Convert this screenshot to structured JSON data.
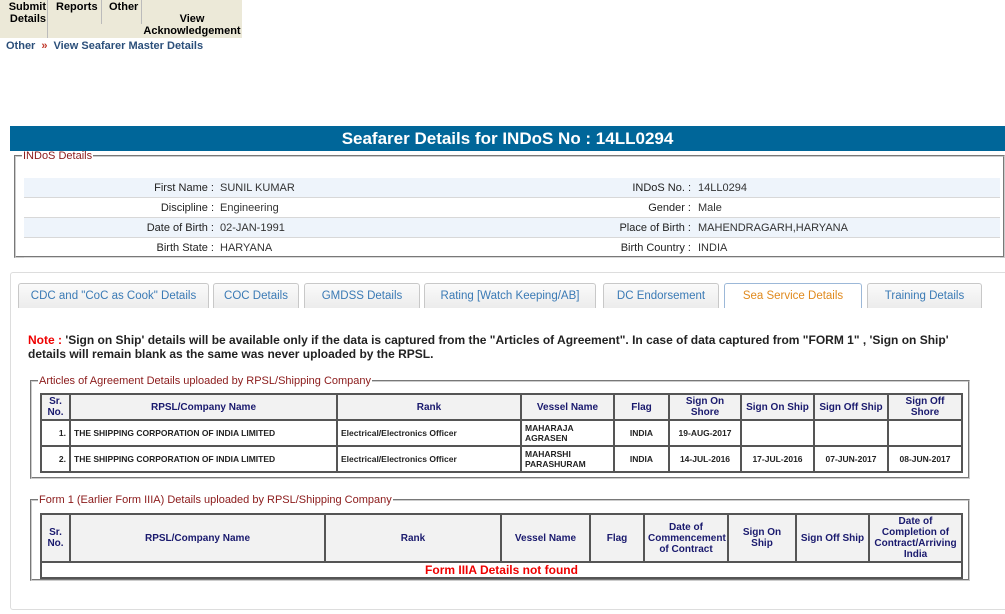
{
  "menu": {
    "items": [
      "Submit Details",
      "Reports",
      "Other",
      "View Acknowledgement"
    ]
  },
  "breadcrumb": {
    "items": [
      "Other",
      "View Seafarer Master Details"
    ],
    "separator": "»"
  },
  "title": "Seafarer Details for INDoS No : 14LL0294",
  "indos": {
    "legend": "INDoS Details",
    "rows": [
      {
        "l1": "First Name :",
        "v1": "SUNIL KUMAR",
        "l2": "INDoS No. :",
        "v2": "14LL0294"
      },
      {
        "l1": "Discipline :",
        "v1": "Engineering",
        "l2": "Gender :",
        "v2": "Male"
      },
      {
        "l1": "Date of Birth :",
        "v1": "02-JAN-1991",
        "l2": "Place of Birth :",
        "v2": "MAHENDRAGARH,HARYANA"
      },
      {
        "l1": "Birth State :",
        "v1": "HARYANA",
        "l2": "Birth Country :",
        "v2": "INDIA"
      }
    ]
  },
  "tabs": [
    "CDC and \"CoC as Cook\" Details",
    "COC Details",
    "GMDSS Details",
    "Rating [Watch Keeping/AB]",
    "DC Endorsement",
    "Sea Service Details",
    "Training Details"
  ],
  "active_tab": "Sea Service Details",
  "note": {
    "label": "Note :",
    "text": " 'Sign on Ship' details will be available only if the data is captured from the \"Articles of Agreement\". In case of data captured from \"FORM 1\" , 'Sign on Ship' details will remain blank as the same was never uploaded by the RPSL."
  },
  "articles": {
    "legend": "Articles of Agreement Details uploaded by RPSL/Shipping Company",
    "headers": [
      "Sr. No.",
      "RPSL/Company Name",
      "Rank",
      "Vessel Name",
      "Flag",
      "Sign On Shore",
      "Sign On Ship",
      "Sign Off Ship",
      "Sign Off Shore"
    ],
    "rows": [
      [
        "1.",
        "THE SHIPPING CORPORATION OF INDIA LIMITED",
        "Electrical/Electronics Officer",
        "MAHARAJA AGRASEN",
        "INDIA",
        "19-AUG-2017",
        "",
        "",
        ""
      ],
      [
        "2.",
        "THE SHIPPING CORPORATION OF INDIA LIMITED",
        "Electrical/Electronics Officer",
        "MAHARSHI PARASHURAM",
        "INDIA",
        "14-JUL-2016",
        "17-JUL-2016",
        "07-JUN-2017",
        "08-JUN-2017"
      ]
    ]
  },
  "form1": {
    "legend": "Form 1 (Earlier Form IIIA) Details uploaded by RPSL/Shipping Company",
    "headers": [
      "Sr. No.",
      "RPSL/Company Name",
      "Rank",
      "Vessel Name",
      "Flag",
      "Date of Commencement of Contract",
      "Sign On Ship",
      "Sign Off Ship",
      "Date of Completion of Contract/Arriving India"
    ],
    "empty": "Form IIIA Details not found"
  },
  "colors": {
    "title_bar": "#006699",
    "active_tab": "#e08a1e",
    "tab_text": "#3a7ab5",
    "legend": "#8b1a1a",
    "note_label": "#e00000"
  }
}
